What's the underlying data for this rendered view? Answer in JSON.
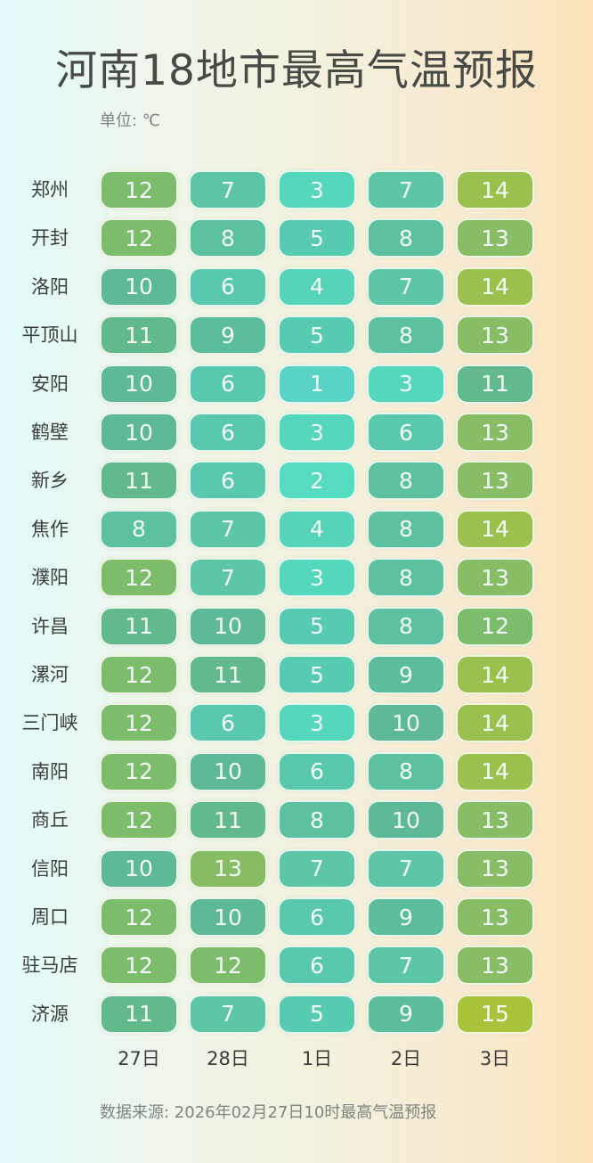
{
  "header": {
    "title": "河南18地市最高气温预报",
    "unit": "单位: ℃"
  },
  "footer": {
    "source": "数据来源: 2026年02月27日10时最高气温预报"
  },
  "colors": {
    "1": "#59d3c6",
    "2": "#55dcc0",
    "3": "#55d7bc",
    "4": "#57d3b8",
    "5": "#56cbb0",
    "6": "#5ac8ac",
    "7": "#5cc6a7",
    "8": "#5cc1a1",
    "9": "#5cbd9c",
    "10": "#5db996",
    "11": "#63b98e",
    "12": "#7cbc6a",
    "13": "#88bd66",
    "14": "#9cc04e",
    "15": "#a7c33a"
  },
  "chart_data": {
    "type": "heatmap",
    "title": "河南18地市最高气温预报",
    "unit": "℃",
    "x": [
      "27日",
      "28日",
      "1日",
      "2日",
      "3日"
    ],
    "y": [
      "郑州",
      "开封",
      "洛阳",
      "平顶山",
      "安阳",
      "鹤壁",
      "新乡",
      "焦作",
      "濮阳",
      "许昌",
      "漯河",
      "三门峡",
      "南阳",
      "商丘",
      "信阳",
      "周口",
      "驻马店",
      "济源"
    ],
    "values": [
      [
        12,
        7,
        3,
        7,
        14
      ],
      [
        12,
        8,
        5,
        8,
        13
      ],
      [
        10,
        6,
        4,
        7,
        14
      ],
      [
        11,
        9,
        5,
        8,
        13
      ],
      [
        10,
        6,
        1,
        3,
        11
      ],
      [
        10,
        6,
        3,
        6,
        13
      ],
      [
        11,
        6,
        2,
        8,
        13
      ],
      [
        8,
        7,
        4,
        8,
        14
      ],
      [
        12,
        7,
        3,
        8,
        13
      ],
      [
        11,
        10,
        5,
        8,
        12
      ],
      [
        12,
        11,
        5,
        9,
        14
      ],
      [
        12,
        6,
        3,
        10,
        14
      ],
      [
        12,
        10,
        6,
        8,
        14
      ],
      [
        12,
        11,
        8,
        10,
        13
      ],
      [
        10,
        13,
        7,
        7,
        13
      ],
      [
        12,
        10,
        6,
        9,
        13
      ],
      [
        12,
        12,
        6,
        7,
        13
      ],
      [
        11,
        7,
        5,
        9,
        15
      ]
    ],
    "source": "数据来源: 2026年02月27日10时最高气温预报"
  }
}
